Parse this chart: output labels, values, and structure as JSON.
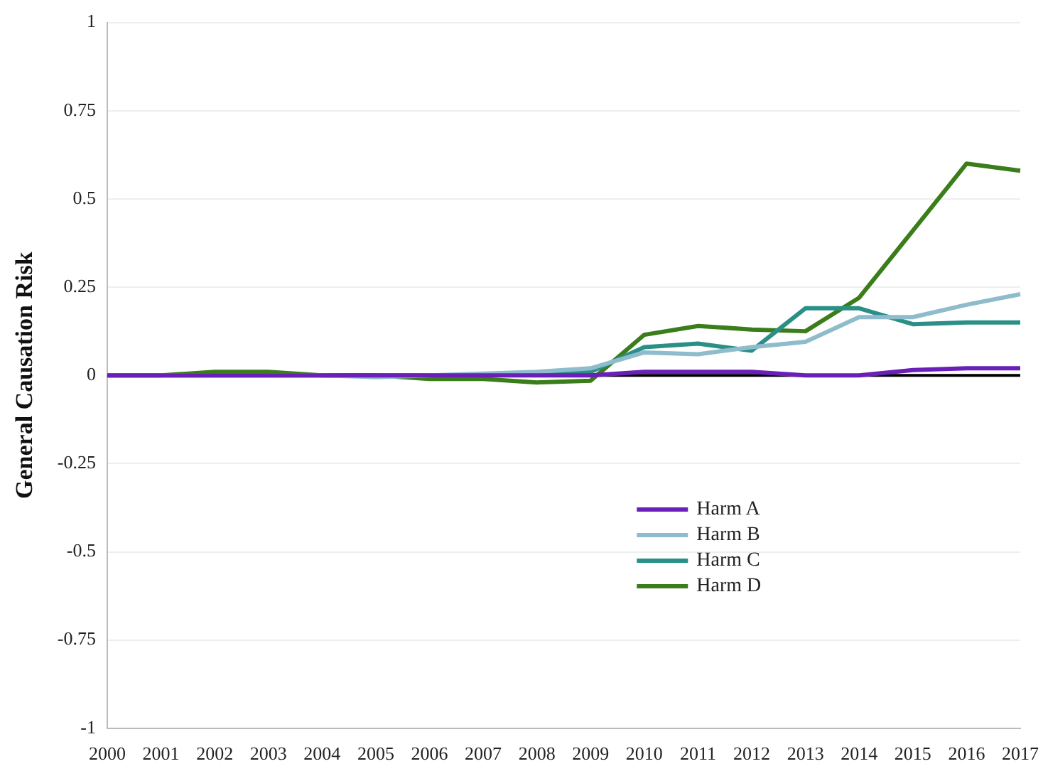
{
  "chart_data": {
    "type": "line",
    "ylabel": "General Causation Risk",
    "categories": [
      "2000",
      "2001",
      "2002",
      "2003",
      "2004",
      "2005",
      "2006",
      "2007",
      "2008",
      "2009",
      "2010",
      "2011",
      "2012",
      "2013",
      "2014",
      "2015",
      "2016",
      "2017"
    ],
    "series": [
      {
        "name": "Harm A",
        "color": "#6a1fb8",
        "values": [
          0,
          0,
          0,
          0,
          0,
          0,
          0,
          0,
          0,
          0,
          0.01,
          0.01,
          0.01,
          0,
          0,
          0.015,
          0.02,
          0.02
        ]
      },
      {
        "name": "Harm B",
        "color": "#8fbccc",
        "values": [
          0,
          0,
          0,
          0,
          0,
          -0.005,
          0,
          0.005,
          0.01,
          0.02,
          0.065,
          0.06,
          0.08,
          0.095,
          0.165,
          0.165,
          0.2,
          0.23
        ]
      },
      {
        "name": "Harm C",
        "color": "#2a8f86",
        "values": [
          0,
          0,
          0,
          0,
          0,
          0,
          0,
          0,
          0.005,
          0.01,
          0.08,
          0.09,
          0.07,
          0.19,
          0.19,
          0.145,
          0.15,
          0.15
        ]
      },
      {
        "name": "Harm D",
        "color": "#3a7d1a",
        "values": [
          0,
          0,
          0.01,
          0.01,
          0,
          0,
          -0.01,
          -0.01,
          -0.02,
          -0.015,
          0.115,
          0.14,
          0.13,
          0.125,
          0.22,
          0.41,
          0.6,
          0.58
        ]
      }
    ],
    "ylim": [
      -1,
      1
    ],
    "yticks": [
      -1,
      -0.75,
      -0.5,
      -0.25,
      0,
      0.25,
      0.5,
      0.75,
      1
    ],
    "ref_lines": [
      {
        "axis": "y",
        "value": 0,
        "color": "#000000"
      }
    ],
    "grid": "y",
    "legend": "bottom center",
    "line_style": "solid",
    "marker": "none"
  }
}
